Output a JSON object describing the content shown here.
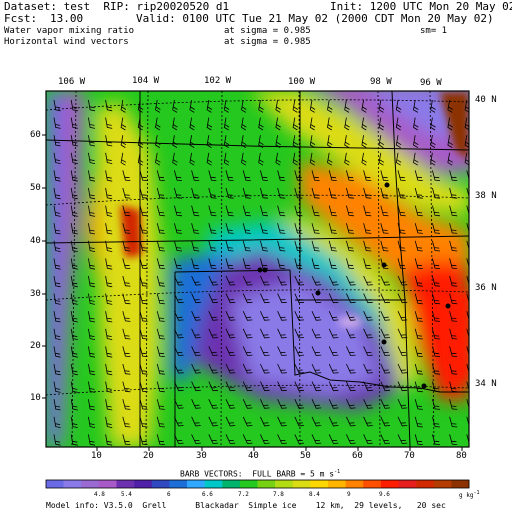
{
  "header": {
    "dataset_line": "Dataset: test  RIP: rip20020520 d1",
    "init_line": "Init: 1200 UTC Mon 20 May 02",
    "fcst_label": "Fcst:",
    "fcst_value": "13.00",
    "valid_line": "Valid: 0100 UTC Tue 21 May 02 (2000 CDT Mon 20 May 02)",
    "field1": "Water vapor mixing ratio",
    "field1_level": "at sigma = 0.985",
    "field1_extra": "sm= 1",
    "field2": "Horizontal wind vectors",
    "field2_level": "at sigma = 0.985"
  },
  "axes": {
    "lon_labels": [
      "106 W",
      "104 W",
      "102 W",
      "100 W",
      "98 W",
      "96 W"
    ],
    "lat_labels": [
      "40 N",
      "38 N",
      "36 N",
      "34 N"
    ],
    "y_ticks": [
      "60",
      "50",
      "40",
      "30",
      "20",
      "10"
    ],
    "x_ticks": [
      "10",
      "20",
      "30",
      "40",
      "50",
      "60",
      "70",
      "80"
    ]
  },
  "barbs": {
    "title": "BARB VECTORS:  FULL BARB = 5 m s",
    "unit_sup": "-1"
  },
  "colorbar": {
    "labels": [
      "4.8",
      "5.4",
      "6",
      "6.6",
      "7.2",
      "7.8",
      "8.4",
      "9",
      "9.6"
    ],
    "unit": "g kg",
    "unit_sup": "-1",
    "colors": [
      "#6a6ae6",
      "#8a7ae8",
      "#9a6ad2",
      "#a85ac8",
      "#6c30b0",
      "#5020a8",
      "#3048c0",
      "#1e6ed8",
      "#30a8ff",
      "#00c8c8",
      "#00b46e",
      "#24c81e",
      "#78d214",
      "#b4dc14",
      "#dcdc14",
      "#ffd700",
      "#ffb400",
      "#ff8200",
      "#ff5000",
      "#ff1e00",
      "#e61e1e",
      "#d22800",
      "#b43c00",
      "#8c3200"
    ]
  },
  "footer": {
    "model_info": "Model info: V3.5.0  Grell      Blackadar  Simple ice    12 km,  29 levels,   20 sec"
  }
}
